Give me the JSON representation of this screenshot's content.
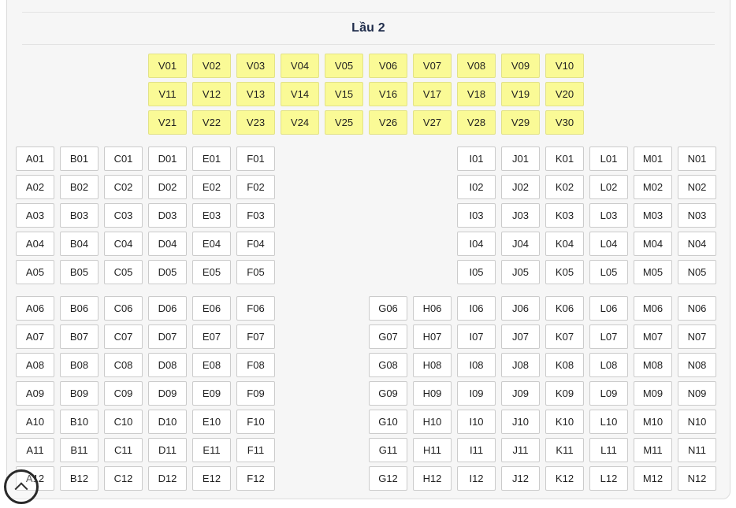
{
  "floor": {
    "title": "Lầu 2"
  },
  "colors": {
    "panel_bg": "#f6f6f6",
    "panel_border": "#dcdcdc",
    "divider": "#e3e3e3",
    "title_color": "#1e2b4a",
    "seat_bg": "#ffffff",
    "seat_border": "#cbcbcb",
    "vip_seat_bg": "#fafa96",
    "vip_seat_border": "#e2e288"
  },
  "seat_map": {
    "sections": [
      {
        "name": "vip-block",
        "style": "vip",
        "cols": [
          3,
          4,
          5,
          6,
          7,
          8,
          9,
          10,
          11,
          12
        ],
        "rows": [
          [
            "V01",
            "V02",
            "V03",
            "V04",
            "V05",
            "V06",
            "V07",
            "V08",
            "V09",
            "V10"
          ],
          [
            "V11",
            "V12",
            "V13",
            "V14",
            "V15",
            "V16",
            "V17",
            "V18",
            "V19",
            "V20"
          ],
          [
            "V21",
            "V22",
            "V23",
            "V24",
            "V25",
            "V26",
            "V27",
            "V28",
            "V29",
            "V30"
          ]
        ]
      },
      {
        "name": "upper-block",
        "style": "standard",
        "cols": [
          0,
          1,
          2,
          3,
          4,
          5,
          10,
          11,
          12,
          13,
          14,
          15
        ],
        "rows": [
          [
            "A01",
            "B01",
            "C01",
            "D01",
            "E01",
            "F01",
            "I01",
            "J01",
            "K01",
            "L01",
            "M01",
            "N01"
          ],
          [
            "A02",
            "B02",
            "C02",
            "D02",
            "E02",
            "F02",
            "I02",
            "J02",
            "K02",
            "L02",
            "M02",
            "N02"
          ],
          [
            "A03",
            "B03",
            "C03",
            "D03",
            "E03",
            "F03",
            "I03",
            "J03",
            "K03",
            "L03",
            "M03",
            "N03"
          ],
          [
            "A04",
            "B04",
            "C04",
            "D04",
            "E04",
            "F04",
            "I04",
            "J04",
            "K04",
            "L04",
            "M04",
            "N04"
          ],
          [
            "A05",
            "B05",
            "C05",
            "D05",
            "E05",
            "F05",
            "I05",
            "J05",
            "K05",
            "L05",
            "M05",
            "N05"
          ]
        ]
      },
      {
        "name": "lower-block",
        "style": "standard",
        "cols": [
          0,
          1,
          2,
          3,
          4,
          5,
          8,
          9,
          10,
          11,
          12,
          13,
          14,
          15
        ],
        "rows": [
          [
            "A06",
            "B06",
            "C06",
            "D06",
            "E06",
            "F06",
            "G06",
            "H06",
            "I06",
            "J06",
            "K06",
            "L06",
            "M06",
            "N06"
          ],
          [
            "A07",
            "B07",
            "C07",
            "D07",
            "E07",
            "F07",
            "G07",
            "H07",
            "I07",
            "J07",
            "K07",
            "L07",
            "M07",
            "N07"
          ],
          [
            "A08",
            "B08",
            "C08",
            "D08",
            "E08",
            "F08",
            "G08",
            "H08",
            "I08",
            "J08",
            "K08",
            "L08",
            "M08",
            "N08"
          ],
          [
            "A09",
            "B09",
            "C09",
            "D09",
            "E09",
            "F09",
            "G09",
            "H09",
            "I09",
            "J09",
            "K09",
            "L09",
            "M09",
            "N09"
          ],
          [
            "A10",
            "B10",
            "C10",
            "D10",
            "E10",
            "F10",
            "G10",
            "H10",
            "I10",
            "J10",
            "K10",
            "L10",
            "M10",
            "N10"
          ],
          [
            "A11",
            "B11",
            "C11",
            "D11",
            "E11",
            "F11",
            "G11",
            "H11",
            "I11",
            "J11",
            "K11",
            "L11",
            "M11",
            "N11"
          ],
          [
            "A12",
            "B12",
            "C12",
            "D12",
            "E12",
            "F12",
            "G12",
            "H12",
            "I12",
            "J12",
            "K12",
            "L12",
            "M12",
            "N12"
          ]
        ]
      }
    ]
  },
  "scroll_top": {
    "icon": "chevron-up"
  }
}
